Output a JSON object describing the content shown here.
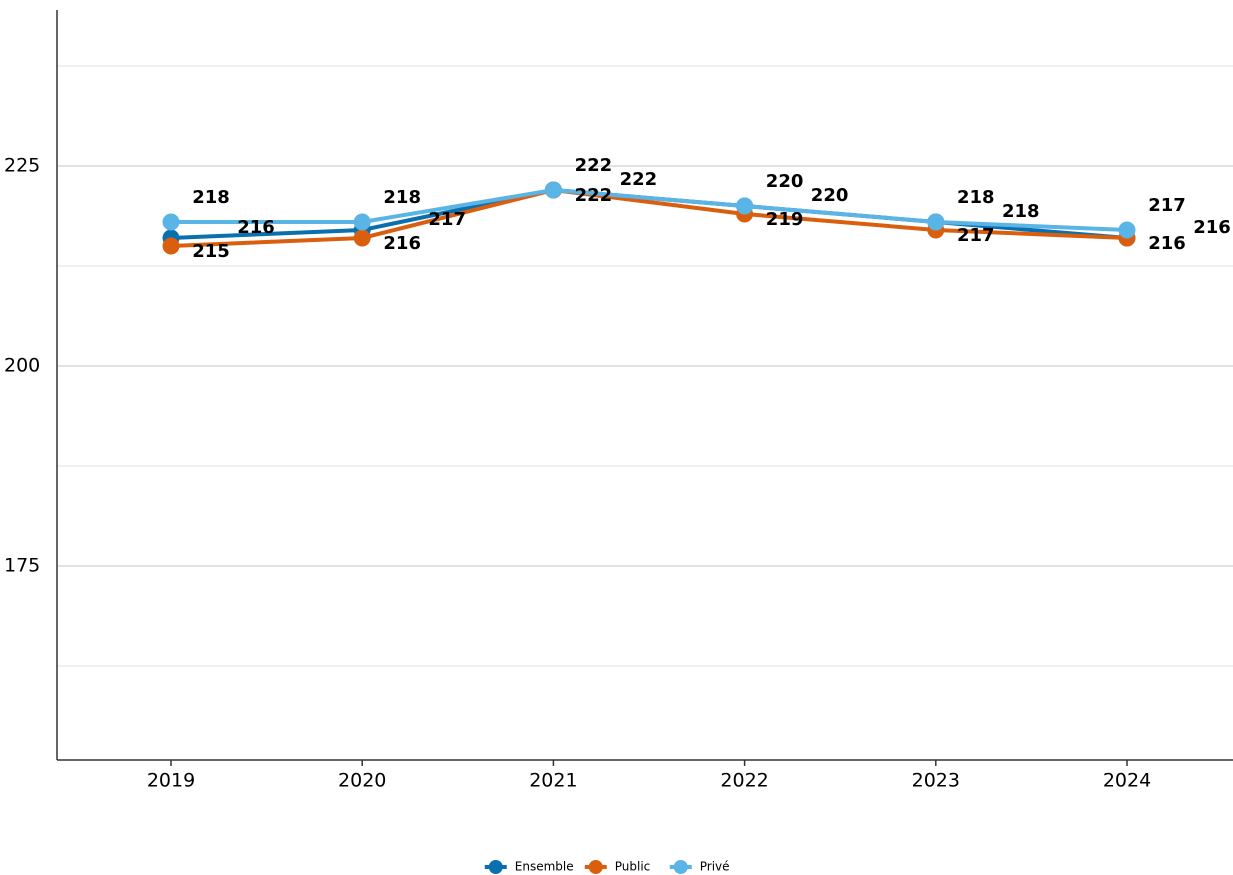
{
  "chart_data": {
    "type": "line",
    "categories": [
      "2019",
      "2020",
      "2021",
      "2022",
      "2023",
      "2024"
    ],
    "series": [
      {
        "name": "Ensemble",
        "color": "#0a6faf",
        "values": [
          216,
          217,
          222,
          220,
          218,
          216
        ]
      },
      {
        "name": "Public",
        "color": "#d95f0e",
        "values": [
          215,
          216,
          222,
          219,
          217,
          216
        ]
      },
      {
        "name": "Privé",
        "color": "#5ab4e5",
        "values": [
          218,
          218,
          222,
          220,
          218,
          217
        ]
      }
    ],
    "ylim": [
      150.75,
      244.5
    ],
    "yticks": [
      175,
      200,
      225
    ],
    "minor_gridlines": [
      162.5,
      187.5,
      212.5,
      237.5
    ],
    "grid": true,
    "legend": "bottom"
  }
}
